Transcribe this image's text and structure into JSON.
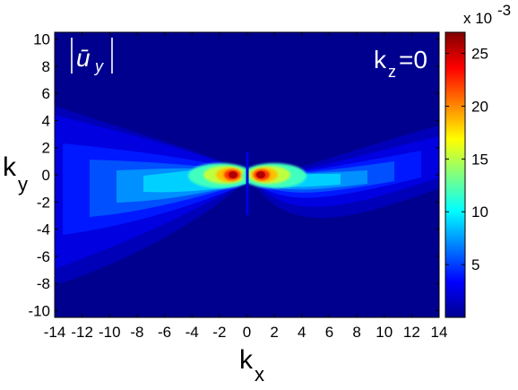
{
  "chart_data": {
    "type": "heatmap",
    "title": "",
    "annotation": "|ū_y|",
    "annotation_var": "ū",
    "annotation_sub": "y",
    "condition_label": "k",
    "condition_sub": "z",
    "condition_value": "=0",
    "xlabel": "k",
    "xlabel_sub": "x",
    "ylabel": "k",
    "ylabel_sub": "y",
    "xlim": [
      -14,
      14
    ],
    "ylim": [
      -10.5,
      10.5
    ],
    "xticks": [
      -14,
      -12,
      -10,
      -8,
      -6,
      -4,
      -2,
      0,
      2,
      4,
      6,
      8,
      10,
      12,
      14
    ],
    "yticks": [
      -10,
      -8,
      -6,
      -4,
      -2,
      0,
      2,
      4,
      6,
      8,
      10
    ],
    "colorbar": {
      "exponent_label": "x 10",
      "exponent": "-3",
      "range": [
        0,
        27
      ],
      "ticks": [
        5,
        10,
        15,
        20,
        25
      ],
      "colormap": "jet"
    },
    "peaks": [
      {
        "x": -1.1,
        "y": 0.1,
        "value": 27
      },
      {
        "x": 1.1,
        "y": 0.1,
        "value": 27
      }
    ]
  }
}
